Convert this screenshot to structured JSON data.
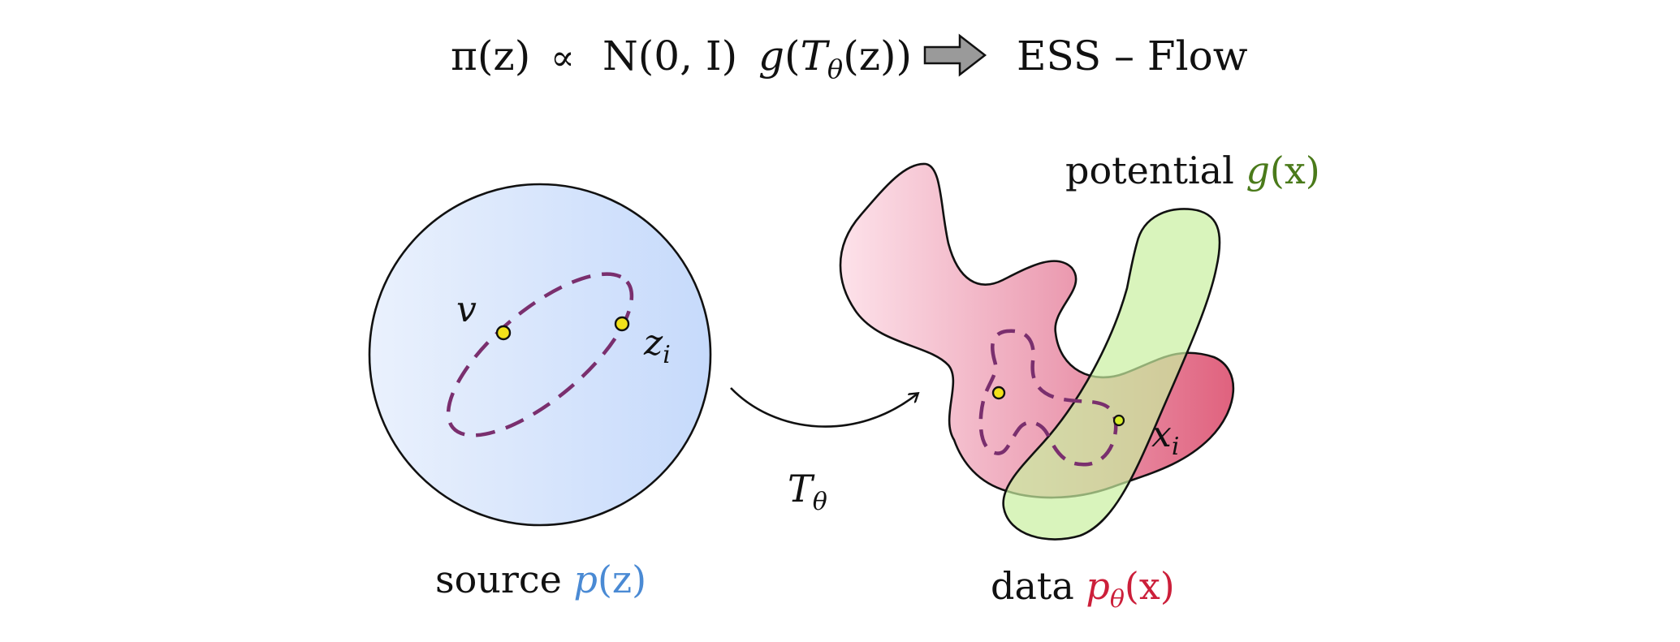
{
  "formula": {
    "lhs": "π(z)",
    "prop": "∝",
    "normal": "N",
    "normal_args": "(0,  I)",
    "g": "g",
    "paren_open": "(",
    "T": "T",
    "theta": "θ",
    "inner": "(z))",
    "result": "ESS – Flow"
  },
  "source": {
    "label": "source",
    "p": "p",
    "arg": "(z)",
    "v_label": "v",
    "z_label": "z",
    "z_sub": "i"
  },
  "transform": {
    "T": "T",
    "theta": "θ"
  },
  "data": {
    "label": "data",
    "p": "p",
    "theta": "θ",
    "arg": "(x)",
    "x_label": "x",
    "x_sub": "i"
  },
  "potential": {
    "label": "potential",
    "g": "g",
    "arg": "(x)"
  },
  "colors": {
    "source_blue": "#4a8ad4",
    "data_red": "#cc1f3a",
    "potential_green": "#4a7a1a",
    "dashed_purple": "#7a2f6e",
    "point_yellow": "#f2e21a",
    "arrow_grey": "#9a9a9a"
  }
}
